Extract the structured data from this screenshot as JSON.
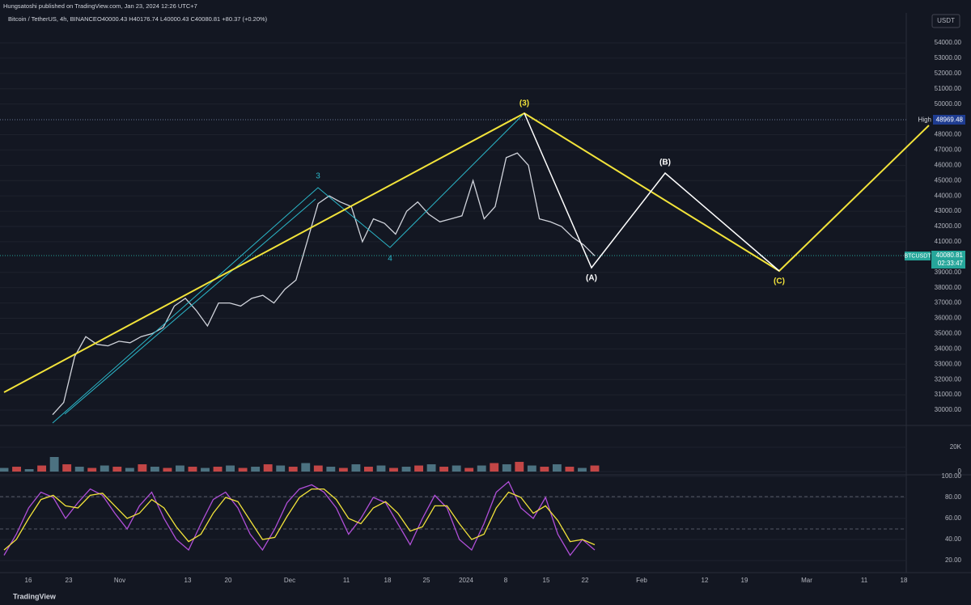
{
  "header": {
    "publisher": "Hungsatoshi published on TradingView.com, Jan 23, 2024 12:26 UTC+7",
    "symbol": "Bitcoin / TetherUS, 4h, BINANCE",
    "ohlc": "O40000.43 H40176.74 L40000.43 C40080.81 +80.37 (+0.20%)",
    "currency": "USDT",
    "brand": "TradingView"
  },
  "badges": {
    "high_label": "High",
    "high_value": "48969.48",
    "ticker": "BTCUSDT",
    "last_price": "40080.81",
    "countdown": "02:33:47"
  },
  "annotations": [
    "(3)",
    "3",
    "4",
    "(A)",
    "(B)",
    "(C)"
  ],
  "time_axis": [
    "16",
    "23",
    "Nov",
    "13",
    "20",
    "Dec",
    "11",
    "18",
    "25",
    "2024",
    "8",
    "15",
    "22",
    "Feb",
    "12",
    "19",
    "Mar",
    "11",
    "18"
  ],
  "chart_data": [
    {
      "type": "line",
      "color": "#d1d4dc",
      "values": [
        29700,
        30500,
        33500,
        34800,
        34300,
        34200,
        34500,
        34400,
        34800,
        35000,
        35400,
        36800,
        37300,
        36500,
        35500,
        37000,
        37000,
        36800,
        37300,
        37500,
        37000,
        37900,
        38500,
        41000,
        43500,
        44000,
        43600,
        43300,
        41000,
        42500,
        42200,
        41500,
        43000,
        43600,
        42800,
        42300,
        42500,
        42700,
        45000,
        42500,
        43300,
        46500,
        46800,
        46000,
        42500,
        42300,
        42000,
        41300,
        40800,
        40080.81
      ],
      "ylim": [
        29050,
        55850
      ],
      "yticks": [
        {
          "value": 30000,
          "label": "30000.00"
        },
        {
          "value": 31000,
          "label": "31000.00"
        },
        {
          "value": 32000,
          "label": "32000.00"
        },
        {
          "value": 33000,
          "label": "33000.00"
        },
        {
          "value": 34000,
          "label": "34000.00"
        },
        {
          "value": 35000,
          "label": "35000.00"
        },
        {
          "value": 36000,
          "label": "36000.00"
        },
        {
          "value": 37000,
          "label": "37000.00"
        },
        {
          "value": 38000,
          "label": "38000.00"
        },
        {
          "value": 39000,
          "label": "39000.00"
        },
        {
          "value": 41000,
          "label": "41000.00"
        },
        {
          "value": 42000,
          "label": "42000.00"
        },
        {
          "value": 43000,
          "label": "43000.00"
        },
        {
          "value": 44000,
          "label": "44000.00"
        },
        {
          "value": 45000,
          "label": "45000.00"
        },
        {
          "value": 46000,
          "label": "46000.00"
        },
        {
          "value": 47000,
          "label": "47000.00"
        },
        {
          "value": 48000,
          "label": "48000.00"
        },
        {
          "value": 50000,
          "label": "50000.00"
        },
        {
          "value": 51000,
          "label": "51000.00"
        },
        {
          "value": 52000,
          "label": "52000.00"
        },
        {
          "value": 53000,
          "label": "53000.00"
        },
        {
          "value": 54000,
          "label": "54000.00"
        }
      ]
    },
    {
      "type": "bar",
      "color": "#5b8a9a",
      "values": [
        3000,
        4000,
        2000,
        5000,
        12000,
        6000,
        4000,
        3000,
        5000,
        4000,
        3000,
        6000,
        4000,
        3000,
        5000,
        4000,
        3000,
        4000,
        5000,
        3000,
        4000,
        6000,
        5000,
        4000,
        7000,
        5000,
        4000,
        3000,
        6000,
        4000,
        5000,
        3000,
        4000,
        5000,
        6000,
        4000,
        5000,
        3000,
        5000,
        7000,
        6000,
        8000,
        5000,
        4000,
        6000,
        4000,
        3000,
        5000
      ],
      "ylim": [
        -1300,
        37300
      ],
      "yticks": [
        0,
        {
          "value": 20000,
          "label": "20K"
        }
      ]
    },
    {
      "type": "line",
      "series": [
        {
          "name": "%K",
          "color": "#b04fd8",
          "values": [
            25,
            45,
            70,
            85,
            80,
            60,
            75,
            88,
            82,
            65,
            50,
            72,
            85,
            60,
            40,
            30,
            55,
            78,
            85,
            70,
            45,
            30,
            50,
            75,
            88,
            92,
            85,
            70,
            45,
            60,
            80,
            75,
            55,
            35,
            60,
            82,
            70,
            40,
            30,
            55,
            85,
            95,
            70,
            60,
            80,
            45,
            25,
            40,
            30
          ]
        },
        {
          "name": "%D",
          "color": "#f2e33a",
          "values": [
            30,
            40,
            60,
            78,
            82,
            72,
            70,
            82,
            84,
            72,
            60,
            65,
            78,
            70,
            52,
            38,
            45,
            65,
            80,
            76,
            58,
            40,
            42,
            62,
            80,
            88,
            88,
            78,
            60,
            55,
            70,
            76,
            65,
            48,
            52,
            72,
            72,
            55,
            40,
            45,
            70,
            85,
            80,
            65,
            72,
            58,
            38,
            40,
            35
          ]
        }
      ],
      "ylim": [
        10.8,
        100.8
      ],
      "yticks": [
        {
          "value": 20,
          "label": "20.00"
        },
        {
          "value": 40,
          "label": "40.00"
        },
        {
          "value": 60,
          "label": "60.00"
        },
        {
          "value": 80,
          "label": "80.00"
        },
        {
          "value": 100,
          "label": "100.00"
        }
      ]
    }
  ]
}
